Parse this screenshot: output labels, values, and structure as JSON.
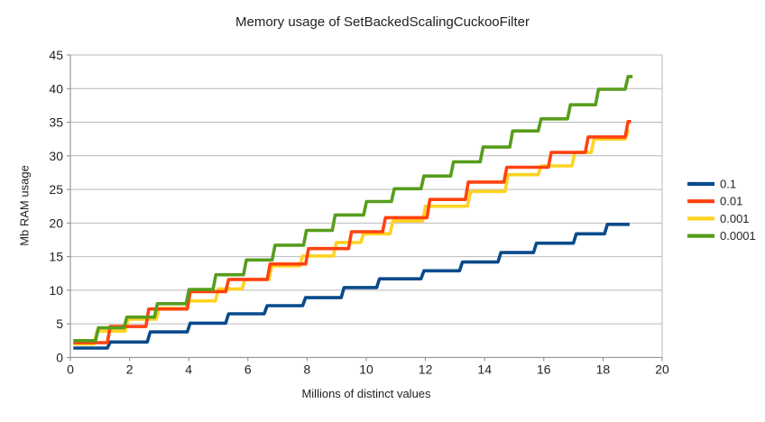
{
  "chart_data": {
    "type": "line",
    "subtype": "step-post",
    "title": "Memory usage of SetBackedScalingCuckooFilter",
    "xlabel": "Millions of distinct values",
    "ylabel": "Mb RAM usage",
    "xlim": [
      0,
      20
    ],
    "ylim": [
      0,
      45
    ],
    "x_ticks": [
      0,
      2,
      4,
      6,
      8,
      10,
      12,
      14,
      16,
      18,
      20
    ],
    "y_ticks": [
      0,
      5,
      10,
      15,
      20,
      25,
      30,
      35,
      40,
      45
    ],
    "grid": "horizontal-only",
    "grid_color": "#b9b9b9",
    "axis_color": "#878787",
    "text_color": "#1f1f1f",
    "background_color": "#ffffff",
    "legend_position": "center-right",
    "legend_order": [
      "0.1",
      "0.01",
      "0.001",
      "0.0001"
    ],
    "draw_order_indexes": [
      0,
      2,
      1,
      3
    ],
    "series": [
      {
        "name": "0.1",
        "color": "#084a8c",
        "x_start": 0.1,
        "x_end": 18.9,
        "step_x": [
          1.3,
          2.65,
          4.0,
          5.3,
          6.6,
          7.9,
          9.2,
          10.4,
          11.9,
          13.2,
          14.5,
          15.7,
          17.05,
          18.1
        ],
        "levels": [
          1.4,
          2.3,
          3.8,
          5.1,
          6.5,
          7.7,
          8.9,
          10.4,
          11.7,
          12.9,
          14.2,
          15.6,
          17.0,
          18.4,
          19.8
        ]
      },
      {
        "name": "0.01",
        "color": "#ff420e",
        "x_start": 0.1,
        "x_end": 18.95,
        "step_x": [
          1.3,
          2.6,
          4.0,
          5.3,
          6.7,
          8.0,
          9.45,
          10.6,
          12.1,
          13.4,
          14.7,
          16.2,
          17.45,
          18.8
        ],
        "levels": [
          2.2,
          4.6,
          7.2,
          9.8,
          11.6,
          13.9,
          16.2,
          18.7,
          20.8,
          23.5,
          26.1,
          28.3,
          30.5,
          32.8,
          35.1
        ]
      },
      {
        "name": "0.001",
        "color": "#ffd320",
        "x_start": 0.1,
        "x_end": 18.9,
        "step_x": [
          0.85,
          1.9,
          2.95,
          3.95,
          4.95,
          5.85,
          6.76,
          7.8,
          8.94,
          9.86,
          10.85,
          11.95,
          13.47,
          14.74,
          15.86,
          17.0,
          17.65,
          18.8
        ],
        "levels": [
          2.0,
          3.9,
          5.7,
          7.3,
          8.4,
          10.2,
          11.6,
          13.6,
          15.1,
          17.1,
          18.4,
          20.3,
          22.5,
          24.7,
          27.2,
          28.5,
          30.5,
          32.5,
          33.7
        ]
      },
      {
        "name": "0.0001",
        "color": "#579d1c",
        "x_start": 0.1,
        "x_end": 19.0,
        "step_x": [
          0.9,
          1.86,
          2.89,
          3.96,
          4.87,
          5.9,
          6.87,
          7.93,
          8.9,
          9.96,
          10.9,
          11.9,
          12.9,
          13.9,
          14.9,
          15.86,
          16.85,
          17.8,
          18.8
        ],
        "levels": [
          2.5,
          4.4,
          6.0,
          8.0,
          10.1,
          12.3,
          14.5,
          16.7,
          18.9,
          21.2,
          23.2,
          25.1,
          27.0,
          29.1,
          31.3,
          33.7,
          35.5,
          37.6,
          39.9,
          41.8
        ]
      }
    ]
  }
}
